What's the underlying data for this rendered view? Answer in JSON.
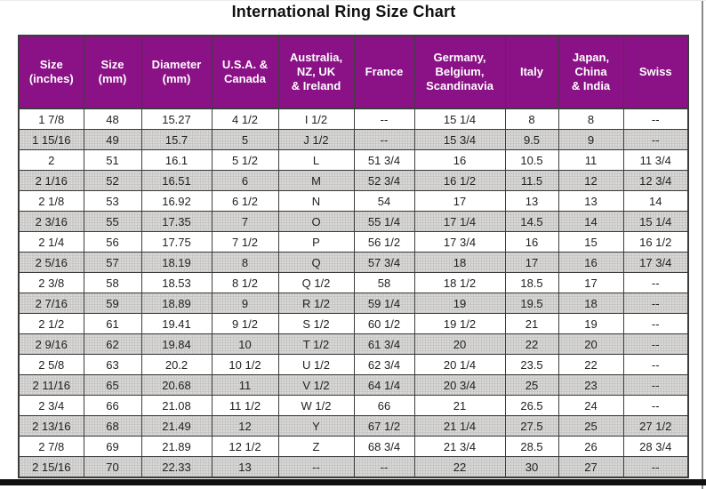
{
  "title": "International Ring Size Chart",
  "colors": {
    "header_bg": "#8B1186",
    "header_text": "#FFFFFF",
    "row_alt_bg": "#C7C6C4",
    "grid_line": "#3D3D3D",
    "body_text": "#222222",
    "bottom_frame": "#111111"
  },
  "chart_data": {
    "type": "table",
    "title": "International Ring Size Chart",
    "missing_value_marker": "--",
    "columns": [
      "Size\n(inches)",
      "Size\n(mm)",
      "Diameter\n(mm)",
      "U.S.A. &\nCanada",
      "Australia,\nNZ, UK\n& Ireland",
      "France",
      "Germany,\nBelgium,\nScandinavia",
      "Italy",
      "Japan,\nChina\n& India",
      "Swiss"
    ],
    "rows": [
      [
        "1 7/8",
        "48",
        "15.27",
        "4 1/2",
        "I 1/2",
        "--",
        "15 1/4",
        "8",
        "8",
        "--"
      ],
      [
        "1 15/16",
        "49",
        "15.7",
        "5",
        "J 1/2",
        "--",
        "15 3/4",
        "9.5",
        "9",
        "--"
      ],
      [
        "2",
        "51",
        "16.1",
        "5 1/2",
        "L",
        "51 3/4",
        "16",
        "10.5",
        "11",
        "11 3/4"
      ],
      [
        "2 1/16",
        "52",
        "16.51",
        "6",
        "M",
        "52 3/4",
        "16 1/2",
        "11.5",
        "12",
        "12 3/4"
      ],
      [
        "2 1/8",
        "53",
        "16.92",
        "6 1/2",
        "N",
        "54",
        "17",
        "13",
        "13",
        "14"
      ],
      [
        "2 3/16",
        "55",
        "17.35",
        "7",
        "O",
        "55 1/4",
        "17 1/4",
        "14.5",
        "14",
        "15 1/4"
      ],
      [
        "2 1/4",
        "56",
        "17.75",
        "7 1/2",
        "P",
        "56 1/2",
        "17 3/4",
        "16",
        "15",
        "16 1/2"
      ],
      [
        "2 5/16",
        "57",
        "18.19",
        "8",
        "Q",
        "57 3/4",
        "18",
        "17",
        "16",
        "17 3/4"
      ],
      [
        "2 3/8",
        "58",
        "18.53",
        "8 1/2",
        "Q 1/2",
        "58",
        "18 1/2",
        "18.5",
        "17",
        "--"
      ],
      [
        "2 7/16",
        "59",
        "18.89",
        "9",
        "R 1/2",
        "59 1/4",
        "19",
        "19.5",
        "18",
        "--"
      ],
      [
        "2 1/2",
        "61",
        "19.41",
        "9 1/2",
        "S 1/2",
        "60 1/2",
        "19 1/2",
        "21",
        "19",
        "--"
      ],
      [
        "2 9/16",
        "62",
        "19.84",
        "10",
        "T 1/2",
        "61 3/4",
        "20",
        "22",
        "20",
        "--"
      ],
      [
        "2 5/8",
        "63",
        "20.2",
        "10 1/2",
        "U 1/2",
        "62 3/4",
        "20 1/4",
        "23.5",
        "22",
        "--"
      ],
      [
        "2 11/16",
        "65",
        "20.68",
        "11",
        "V 1/2",
        "64 1/4",
        "20 3/4",
        "25",
        "23",
        "--"
      ],
      [
        "2 3/4",
        "66",
        "21.08",
        "11 1/2",
        "W 1/2",
        "66",
        "21",
        "26.5",
        "24",
        "--"
      ],
      [
        "2 13/16",
        "68",
        "21.49",
        "12",
        "Y",
        "67 1/2",
        "21 1/4",
        "27.5",
        "25",
        "27 1/2"
      ],
      [
        "2 7/8",
        "69",
        "21.89",
        "12 1/2",
        "Z",
        "68 3/4",
        "21 3/4",
        "28.5",
        "26",
        "28 3/4"
      ],
      [
        "2 15/16",
        "70",
        "22.33",
        "13",
        "--",
        "--",
        "22",
        "30",
        "27",
        "--"
      ]
    ]
  }
}
